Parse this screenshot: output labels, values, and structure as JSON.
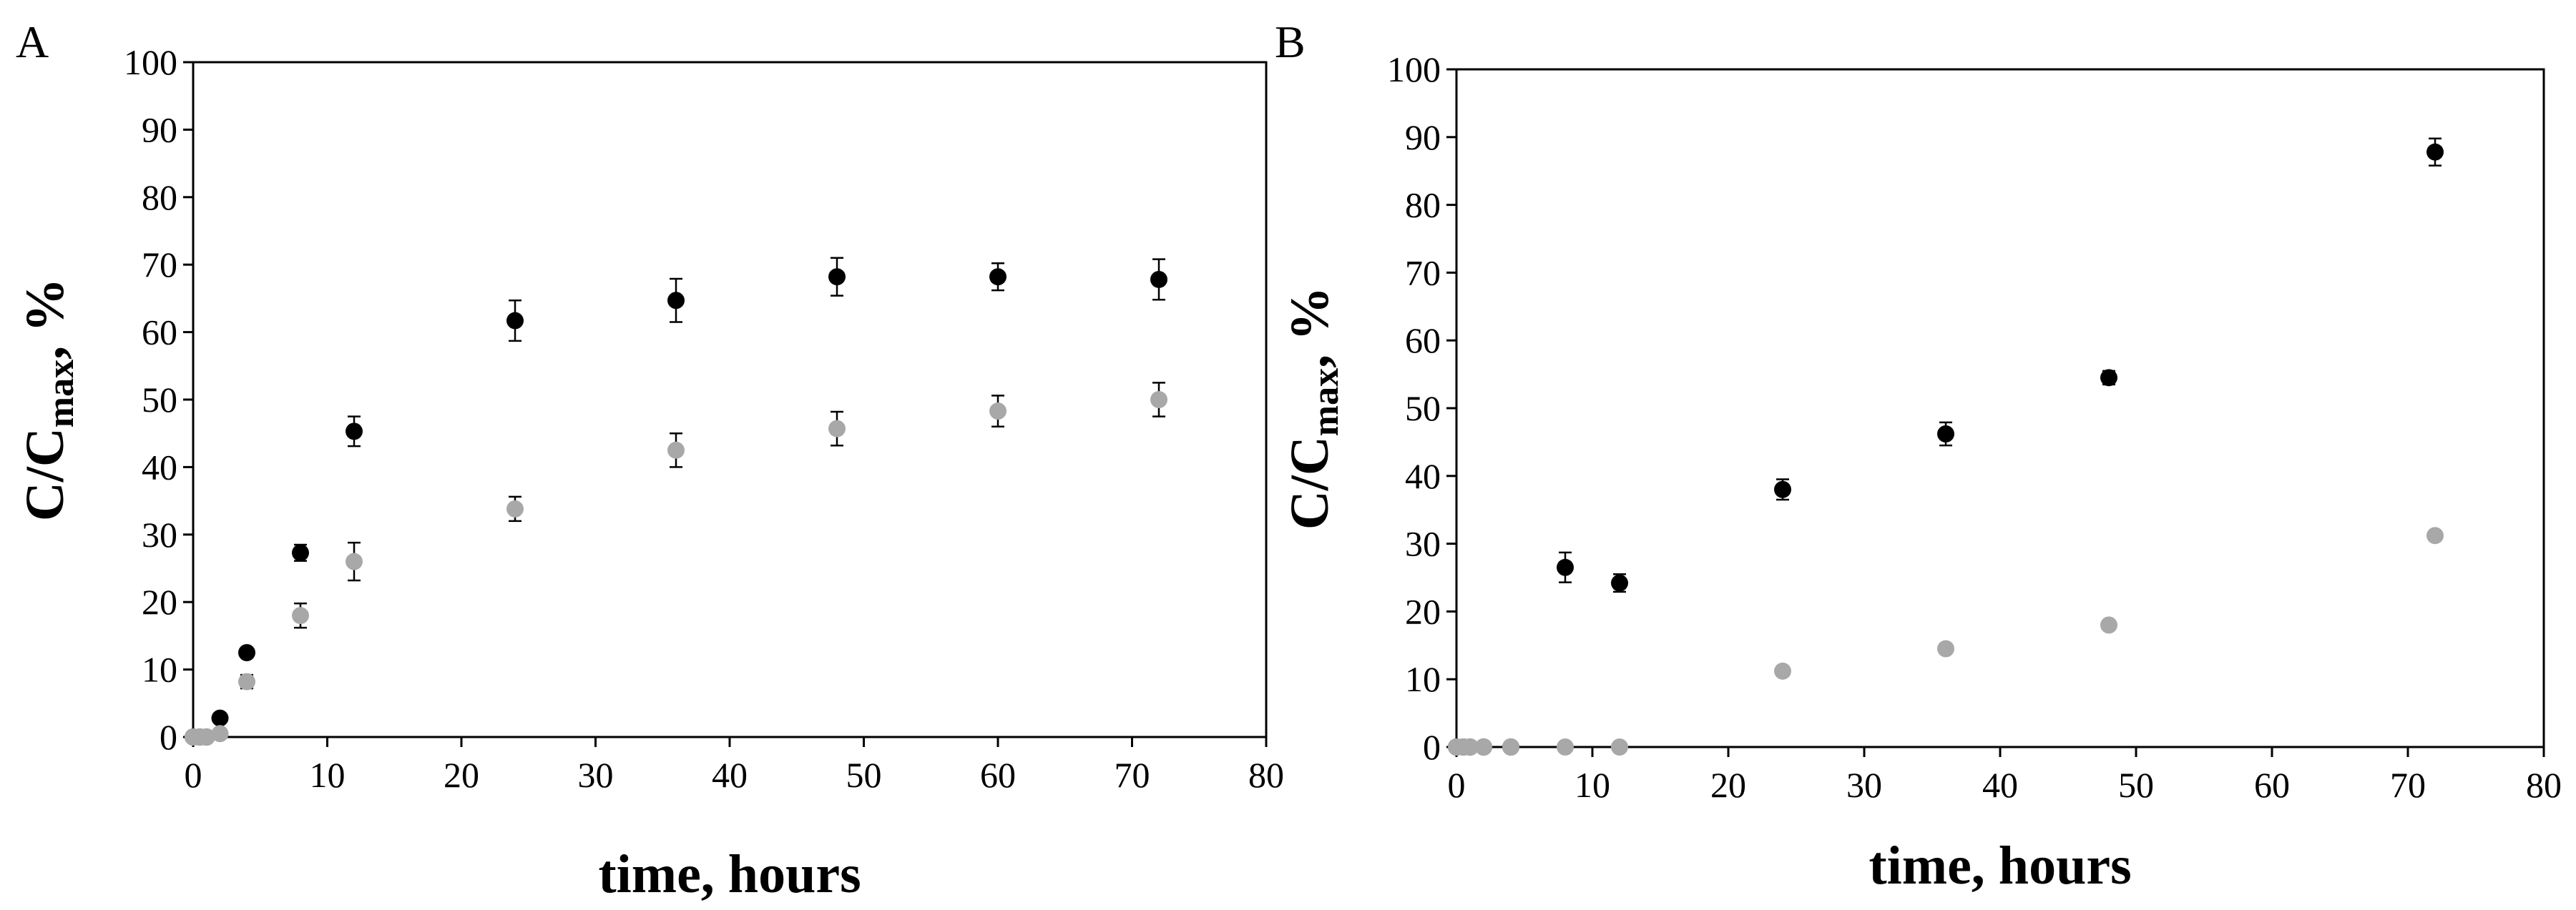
{
  "chart_data": [
    {
      "panel_label": "A",
      "type": "scatter",
      "xlabel": "time, hours",
      "ylabel_main": "C/C",
      "ylabel_sub": "max",
      "ylabel_tail": ", %",
      "xlim": [
        0,
        80
      ],
      "ylim": [
        0,
        100
      ],
      "x_ticks": [
        "0",
        "10",
        "20",
        "30",
        "40",
        "50",
        "60",
        "70",
        "80"
      ],
      "y_ticks": [
        "0",
        "10",
        "20",
        "30",
        "40",
        "50",
        "60",
        "70",
        "80",
        "90",
        "100"
      ],
      "grid": false,
      "legend": "none",
      "series": [
        {
          "color": "#000000",
          "points": [
            {
              "x": 0,
              "y": 0,
              "err": 0
            },
            {
              "x": 0.5,
              "y": 0,
              "err": 0
            },
            {
              "x": 1,
              "y": 0,
              "err": 0
            },
            {
              "x": 2,
              "y": 2.8,
              "err": 0.6
            },
            {
              "x": 4,
              "y": 12.5,
              "err": 0.6
            },
            {
              "x": 8,
              "y": 27.3,
              "err": 1.2
            },
            {
              "x": 12,
              "y": 45.3,
              "err": 2.2
            },
            {
              "x": 24,
              "y": 61.7,
              "err": 3.0
            },
            {
              "x": 36,
              "y": 64.7,
              "err": 3.2
            },
            {
              "x": 48,
              "y": 68.2,
              "err": 2.8
            },
            {
              "x": 60,
              "y": 68.2,
              "err": 2.0
            },
            {
              "x": 72,
              "y": 67.8,
              "err": 3.0
            }
          ]
        },
        {
          "color": "#a8a8a8",
          "points": [
            {
              "x": 0,
              "y": 0,
              "err": 0
            },
            {
              "x": 0.5,
              "y": 0,
              "err": 0
            },
            {
              "x": 1,
              "y": 0,
              "err": 0
            },
            {
              "x": 2,
              "y": 0.5,
              "err": 0.3
            },
            {
              "x": 4,
              "y": 8.2,
              "err": 1.0
            },
            {
              "x": 8,
              "y": 18.0,
              "err": 1.8
            },
            {
              "x": 12,
              "y": 26.0,
              "err": 2.8
            },
            {
              "x": 24,
              "y": 33.8,
              "err": 1.8
            },
            {
              "x": 36,
              "y": 42.5,
              "err": 2.5
            },
            {
              "x": 48,
              "y": 45.7,
              "err": 2.5
            },
            {
              "x": 60,
              "y": 48.3,
              "err": 2.3
            },
            {
              "x": 72,
              "y": 50.0,
              "err": 2.5
            }
          ]
        }
      ]
    },
    {
      "panel_label": "B",
      "type": "scatter",
      "xlabel": "time, hours",
      "ylabel_main": "C/C",
      "ylabel_sub": "max",
      "ylabel_tail": ", %",
      "xlim": [
        0,
        80
      ],
      "ylim": [
        0,
        100
      ],
      "x_ticks": [
        "0",
        "10",
        "20",
        "30",
        "40",
        "50",
        "60",
        "70",
        "80"
      ],
      "y_ticks": [
        "0",
        "10",
        "20",
        "30",
        "40",
        "50",
        "60",
        "70",
        "80",
        "90",
        "100"
      ],
      "grid": false,
      "legend": "none",
      "series": [
        {
          "color": "#000000",
          "points": [
            {
              "x": 0,
              "y": 0,
              "err": 0
            },
            {
              "x": 0.5,
              "y": 0,
              "err": 0
            },
            {
              "x": 1,
              "y": 0,
              "err": 0
            },
            {
              "x": 2,
              "y": 0,
              "err": 0
            },
            {
              "x": 4,
              "y": 0,
              "err": 0
            },
            {
              "x": 8,
              "y": 26.5,
              "err": 2.2
            },
            {
              "x": 12,
              "y": 24.2,
              "err": 1.3
            },
            {
              "x": 24,
              "y": 38.0,
              "err": 1.5
            },
            {
              "x": 36,
              "y": 46.2,
              "err": 1.7
            },
            {
              "x": 48,
              "y": 54.5,
              "err": 1.0
            },
            {
              "x": 72,
              "y": 87.8,
              "err": 2.0
            }
          ]
        },
        {
          "color": "#a8a8a8",
          "points": [
            {
              "x": 0,
              "y": 0,
              "err": 0
            },
            {
              "x": 0.5,
              "y": 0,
              "err": 0
            },
            {
              "x": 1,
              "y": 0,
              "err": 0
            },
            {
              "x": 2,
              "y": 0,
              "err": 0
            },
            {
              "x": 4,
              "y": 0,
              "err": 0
            },
            {
              "x": 8,
              "y": 0,
              "err": 0
            },
            {
              "x": 12,
              "y": 0,
              "err": 0
            },
            {
              "x": 24,
              "y": 11.2,
              "err": 0
            },
            {
              "x": 36,
              "y": 14.5,
              "err": 0
            },
            {
              "x": 48,
              "y": 18.0,
              "err": 0
            },
            {
              "x": 72,
              "y": 31.2,
              "err": 0
            }
          ]
        }
      ]
    }
  ]
}
